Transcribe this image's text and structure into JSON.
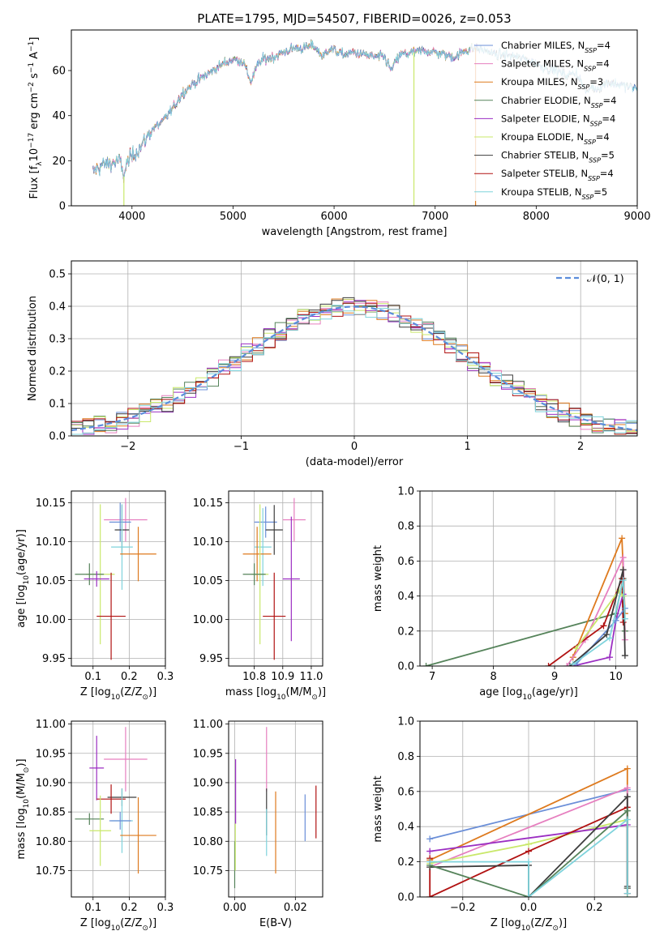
{
  "figure": {
    "title": "PLATE=1795, MJD=54507, FIBERID=0026, z=0.053"
  },
  "colors": {
    "cm": "#6b8fd8",
    "sm": "#e67fbf",
    "km": "#de7a1e",
    "ce": "#55835a",
    "se": "#9b2ec2",
    "ke": "#c9e86a",
    "cs": "#3d3d3d",
    "ss": "#b11212",
    "ks": "#7fd3dc"
  },
  "models": [
    {
      "key": "cm",
      "label": "Chabrier MILES, N",
      "sub": "SSP",
      "n": "=4"
    },
    {
      "key": "sm",
      "label": "Salpeter MILES, N",
      "sub": "SSP",
      "n": "=4"
    },
    {
      "key": "km",
      "label": "Kroupa MILES, N",
      "sub": "SSP",
      "n": "=3"
    },
    {
      "key": "ce",
      "label": "Chabrier ELODIE, N",
      "sub": "SSP",
      "n": "=4"
    },
    {
      "key": "se",
      "label": "Salpeter ELODIE, N",
      "sub": "SSP",
      "n": "=4"
    },
    {
      "key": "ke",
      "label": "Kroupa ELODIE, N",
      "sub": "SSP",
      "n": "=4"
    },
    {
      "key": "cs",
      "label": "Chabrier STELIB, N",
      "sub": "SSP",
      "n": "=5"
    },
    {
      "key": "ss",
      "label": "Salpeter STELIB, N",
      "sub": "SSP",
      "n": "=4"
    },
    {
      "key": "ks",
      "label": "Kroupa STELIB, N",
      "sub": "SSP",
      "n": "=5"
    }
  ],
  "chart_data": [
    {
      "id": "spectrum",
      "type": "line",
      "xlabel": "wavelength [Angstrom, rest frame]",
      "ylabel": "Flux [f",
      "ylabel_parts": [
        "λ",
        "10",
        "−17",
        " erg cm",
        "−2",
        " s",
        "−1",
        " A",
        "−1",
        "]"
      ],
      "xlim": [
        3400,
        9000
      ],
      "ylim": [
        0,
        78
      ],
      "xticks": [
        "4000",
        "5000",
        "6000",
        "7000",
        "8000",
        "9000"
      ],
      "yticks": [
        "0",
        "20",
        "40",
        "60"
      ],
      "continuum": [
        [
          3610,
          15
        ],
        [
          3700,
          18
        ],
        [
          3800,
          19
        ],
        [
          3880,
          20
        ],
        [
          3920,
          13
        ],
        [
          3950,
          19
        ],
        [
          4000,
          22
        ],
        [
          4100,
          27
        ],
        [
          4200,
          34
        ],
        [
          4300,
          37
        ],
        [
          4400,
          43
        ],
        [
          4500,
          50
        ],
        [
          4600,
          54
        ],
        [
          4700,
          57
        ],
        [
          4800,
          60
        ],
        [
          4900,
          63
        ],
        [
          5000,
          65
        ],
        [
          5100,
          64
        ],
        [
          5175,
          55
        ],
        [
          5250,
          63
        ],
        [
          5300,
          65
        ],
        [
          5400,
          66
        ],
        [
          5500,
          68
        ],
        [
          5600,
          70
        ],
        [
          5700,
          70
        ],
        [
          5800,
          71
        ],
        [
          5890,
          66
        ],
        [
          5950,
          70
        ],
        [
          6000,
          69
        ],
        [
          6100,
          67
        ],
        [
          6200,
          68
        ],
        [
          6300,
          67
        ],
        [
          6400,
          66
        ],
        [
          6500,
          66
        ],
        [
          6563,
          60
        ],
        [
          6650,
          67
        ],
        [
          6800,
          68
        ],
        [
          6900,
          69
        ],
        [
          7000,
          68
        ],
        [
          7100,
          67
        ],
        [
          7200,
          66
        ],
        [
          7300,
          69
        ],
        [
          7400,
          70
        ],
        [
          7500,
          69
        ],
        [
          7600,
          67
        ],
        [
          7700,
          67
        ],
        [
          7800,
          66
        ],
        [
          7900,
          65
        ],
        [
          8000,
          63
        ],
        [
          8100,
          61
        ],
        [
          8200,
          60
        ],
        [
          8300,
          58
        ],
        [
          8400,
          59
        ],
        [
          8500,
          50
        ],
        [
          8542,
          53
        ],
        [
          8600,
          52
        ],
        [
          8662,
          53
        ],
        [
          8700,
          55
        ],
        [
          8800,
          54
        ],
        [
          8900,
          53
        ],
        [
          9000,
          52
        ]
      ],
      "dips": [
        [
          3920,
          0,
          "ke"
        ],
        [
          6790,
          0,
          "ke"
        ],
        [
          7400,
          0,
          "km"
        ]
      ]
    },
    {
      "id": "residuals",
      "type": "histogram",
      "xlabel": "(data-model)/error",
      "ylabel": "Normed distribution",
      "xlim": [
        -2.5,
        2.5
      ],
      "ylim": [
        0,
        0.54
      ],
      "xticks": [
        -2,
        -1,
        0,
        1,
        2
      ],
      "xtick_labels": [
        "−2",
        "−1",
        "0",
        "1",
        "2"
      ],
      "yticks": [
        "0.0",
        "0.1",
        "0.2",
        "0.3",
        "0.4",
        "0.5"
      ],
      "bin_width": 0.1,
      "legend": "𝒩(0, 1)"
    },
    {
      "id": "age_vs_Z",
      "type": "scatter",
      "xlabel": "Z [log",
      "xlabel_parts": [
        "10",
        "(Z/Z",
        "⊙",
        ")]"
      ],
      "ylabel": "age  [log",
      "ylabel_parts": [
        "10",
        "(age/yr)]"
      ],
      "xlim": [
        0.04,
        0.3
      ],
      "ylim": [
        9.94,
        10.165
      ],
      "xticks": [
        "0.1",
        "0.2",
        "0.3"
      ],
      "yticks": [
        "9.95",
        "10.00",
        "10.05",
        "10.10",
        "10.15"
      ],
      "points": [
        {
          "key": "sm",
          "x": 0.19,
          "y": 10.128,
          "xe": 0.06,
          "ye": 0.028
        },
        {
          "key": "cm",
          "x": 0.175,
          "y": 10.125,
          "xe": 0.03,
          "ye": 0.025
        },
        {
          "key": "cs",
          "x": 0.18,
          "y": 10.115,
          "xe": 0.02,
          "ye": 0.032
        },
        {
          "key": "ks",
          "x": 0.18,
          "y": 10.093,
          "xe": 0.03,
          "ye": 0.055
        },
        {
          "key": "km",
          "x": 0.225,
          "y": 10.084,
          "xe": 0.05,
          "ye": 0.035
        },
        {
          "key": "ke",
          "x": 0.12,
          "y": 10.058,
          "xe": 0.04,
          "ye": 0.09
        },
        {
          "key": "ce",
          "x": 0.09,
          "y": 10.058,
          "xe": 0.04,
          "ye": 0.014
        },
        {
          "key": "se",
          "x": 0.11,
          "y": 10.052,
          "xe": 0.035,
          "ye": 0.01
        },
        {
          "key": "ss",
          "x": 0.15,
          "y": 10.004,
          "xe": 0.04,
          "ye": 0.056
        }
      ]
    },
    {
      "id": "age_vs_mass",
      "type": "scatter",
      "xlabel": "mass [log",
      "xlabel_parts": [
        "10",
        "(M/M",
        "⊙",
        ")]"
      ],
      "xlim": [
        10.71,
        11.04
      ],
      "ylim": [
        9.94,
        10.165
      ],
      "xticks": [
        "10.8",
        "10.9",
        "11.0"
      ],
      "yticks": [
        "9.95",
        "10.00",
        "10.05",
        "10.10",
        "10.15"
      ],
      "points": [
        {
          "key": "sm",
          "x": 10.94,
          "y": 10.128,
          "xe": 0.04,
          "ye": 0.028
        },
        {
          "key": "cm",
          "x": 10.84,
          "y": 10.125,
          "xe": 0.04,
          "ye": 0.02
        },
        {
          "key": "cs",
          "x": 10.87,
          "y": 10.115,
          "xe": 0.03,
          "ye": 0.032
        },
        {
          "key": "ks",
          "x": 10.83,
          "y": 10.093,
          "xe": 0.03,
          "ye": 0.05
        },
        {
          "key": "km",
          "x": 10.81,
          "y": 10.084,
          "xe": 0.05,
          "ye": 0.035
        },
        {
          "key": "ke",
          "x": 10.82,
          "y": 10.058,
          "xe": 0.03,
          "ye": 0.09
        },
        {
          "key": "ce",
          "x": 10.8,
          "y": 10.058,
          "xe": 0.04,
          "ye": 0.014
        },
        {
          "key": "se",
          "x": 10.93,
          "y": 10.052,
          "xe": 0.03,
          "ye": 0.08
        },
        {
          "key": "ss",
          "x": 10.87,
          "y": 10.004,
          "xe": 0.04,
          "ye": 0.056
        }
      ]
    },
    {
      "id": "weight_vs_age",
      "type": "line",
      "xlabel": "age  [log",
      "xlabel_parts": [
        "10",
        "(age/yr)]"
      ],
      "ylabel": "mass weight",
      "xlim": [
        6.8,
        10.35
      ],
      "ylim": [
        0,
        1
      ],
      "xticks": [
        "7",
        "8",
        "9",
        "10"
      ],
      "yticks": [
        "0.0",
        "0.2",
        "0.4",
        "0.6",
        "0.8",
        "1.0"
      ],
      "series": [
        {
          "key": "ce",
          "points": [
            [
              6.9,
              0
            ],
            [
              10.0,
              0.3
            ],
            [
              10.12,
              0.5
            ],
            [
              10.15,
              0.2
            ]
          ]
        },
        {
          "key": "km",
          "points": [
            [
              9.3,
              0.05
            ],
            [
              10.1,
              0.73
            ],
            [
              10.15,
              0.3
            ]
          ]
        },
        {
          "key": "sm",
          "points": [
            [
              9.2,
              0.0
            ],
            [
              9.5,
              0.15
            ],
            [
              10.12,
              0.62
            ],
            [
              10.15,
              0.15
            ]
          ]
        },
        {
          "key": "ss",
          "points": [
            [
              8.9,
              0.0
            ],
            [
              9.8,
              0.23
            ],
            [
              10.1,
              0.5
            ],
            [
              10.12,
              0.25
            ]
          ]
        },
        {
          "key": "se",
          "points": [
            [
              9.3,
              0.0
            ],
            [
              9.9,
              0.05
            ],
            [
              10.0,
              0.26
            ],
            [
              10.12,
              0.41
            ]
          ]
        },
        {
          "key": "ke",
          "points": [
            [
              9.35,
              0.1
            ],
            [
              10.05,
              0.43
            ],
            [
              10.12,
              0.4
            ]
          ]
        },
        {
          "key": "cm",
          "points": [
            [
              9.35,
              0.01
            ],
            [
              10.0,
              0.26
            ],
            [
              10.15,
              0.33
            ]
          ]
        },
        {
          "key": "cs",
          "points": [
            [
              9.25,
              0.0
            ],
            [
              9.85,
              0.18
            ],
            [
              10.12,
              0.55
            ],
            [
              10.15,
              0.06
            ]
          ]
        },
        {
          "key": "ks",
          "points": [
            [
              9.3,
              0.01
            ],
            [
              9.9,
              0.16
            ],
            [
              10.12,
              0.49
            ],
            [
              10.15,
              0.27
            ]
          ]
        }
      ]
    },
    {
      "id": "mass_vs_Z",
      "type": "scatter",
      "xlabel": "Z [log",
      "xlabel_parts": [
        "10",
        "(Z/Z",
        "⊙",
        ")]"
      ],
      "ylabel": "mass [log",
      "ylabel_parts": [
        "10",
        "(M/M",
        "⊙",
        ")]"
      ],
      "xlim": [
        0.04,
        0.3
      ],
      "ylim": [
        10.705,
        11.005
      ],
      "xticks": [
        "0.1",
        "0.2",
        "0.3"
      ],
      "yticks": [
        "10.75",
        "10.80",
        "10.85",
        "10.90",
        "10.95",
        "11.00"
      ],
      "points": [
        {
          "key": "sm",
          "x": 0.19,
          "y": 10.94,
          "xe": 0.06,
          "ye": 0.055
        },
        {
          "key": "se",
          "x": 0.11,
          "y": 10.925,
          "xe": 0.02,
          "ye": 0.055
        },
        {
          "key": "cs",
          "x": 0.18,
          "y": 10.875,
          "xe": 0.04,
          "ye": 0.015
        },
        {
          "key": "ss",
          "x": 0.15,
          "y": 10.872,
          "xe": 0.04,
          "ye": 0.025
        },
        {
          "key": "ce",
          "x": 0.09,
          "y": 10.838,
          "xe": 0.04,
          "ye": 0.01
        },
        {
          "key": "ks",
          "x": 0.18,
          "y": 10.835,
          "xe": 0.03,
          "ye": 0.055
        },
        {
          "key": "cm",
          "x": 0.175,
          "y": 10.835,
          "xe": 0.03,
          "ye": 0.015
        },
        {
          "key": "ke",
          "x": 0.12,
          "y": 10.818,
          "xe": 0.03,
          "ye": 0.06
        },
        {
          "key": "km",
          "x": 0.225,
          "y": 10.81,
          "xe": 0.05,
          "ye": 0.065
        }
      ]
    },
    {
      "id": "mass_vs_EBV",
      "type": "scatter",
      "xlabel": "E(B-V)",
      "xlim": [
        -0.002,
        0.029
      ],
      "ylim": [
        10.705,
        11.005
      ],
      "xticks": [
        "0.00",
        "0.02"
      ],
      "yticks": [
        "10.75",
        "10.80",
        "10.85",
        "10.90",
        "10.95",
        "11.00"
      ],
      "points": [
        {
          "key": "sm",
          "x": 0.0105,
          "y": 10.94,
          "xe": 0,
          "ye": 0.055
        },
        {
          "key": "se",
          "x": 0.0003,
          "y": 10.885,
          "xe": 0,
          "ye": 0.055
        },
        {
          "key": "cs",
          "x": 0.0105,
          "y": 10.85,
          "xe": 0,
          "ye": 0.04
        },
        {
          "key": "ce",
          "x": 0.0,
          "y": 10.76,
          "xe": 0,
          "ye": 0.04
        },
        {
          "key": "ke",
          "x": 0.0002,
          "y": 10.79,
          "xe": 0,
          "ye": 0.04
        },
        {
          "key": "ks",
          "x": 0.0105,
          "y": 10.815,
          "xe": 0,
          "ye": 0.04
        },
        {
          "key": "km",
          "x": 0.0135,
          "y": 10.815,
          "xe": 0,
          "ye": 0.07
        },
        {
          "key": "cm",
          "x": 0.0232,
          "y": 10.84,
          "xe": 0,
          "ye": 0.04
        },
        {
          "key": "ss",
          "x": 0.0268,
          "y": 10.85,
          "xe": 0,
          "ye": 0.045
        }
      ]
    },
    {
      "id": "weight_vs_Z",
      "type": "line",
      "xlabel": "Z [log",
      "xlabel_parts": [
        "10",
        "(Z/Z",
        "⊙",
        ")]"
      ],
      "ylabel": "mass weight",
      "xlim": [
        -0.33,
        0.33
      ],
      "ylim": [
        0,
        1
      ],
      "xticks": [
        -0.2,
        0.0,
        0.2
      ],
      "xtick_labels": [
        "−0.2",
        "0.0",
        "0.2"
      ],
      "yticks": [
        "0.0",
        "0.2",
        "0.4",
        "0.6",
        "0.8",
        "1.0"
      ],
      "series": [
        {
          "key": "cm",
          "points": [
            [
              -0.3,
              0.33
            ],
            [
              0.3,
              0.61
            ],
            [
              0.3,
              0.02
            ]
          ]
        },
        {
          "key": "km",
          "points": [
            [
              -0.3,
              0.21
            ],
            [
              0.3,
              0.73
            ],
            [
              0.3,
              0.05
            ]
          ]
        },
        {
          "key": "sm",
          "points": [
            [
              -0.3,
              0.17
            ],
            [
              0.3,
              0.62
            ],
            [
              0.3,
              0.05
            ]
          ]
        },
        {
          "key": "ke",
          "points": [
            [
              -0.3,
              0.19
            ],
            [
              0.0,
              0.3
            ],
            [
              0.3,
              0.44
            ],
            [
              0.3,
              0.0
            ]
          ]
        },
        {
          "key": "se",
          "points": [
            [
              -0.3,
              0.26
            ],
            [
              0.3,
              0.41
            ],
            [
              0.3,
              0.05
            ]
          ]
        },
        {
          "key": "ss",
          "points": [
            [
              -0.3,
              0.22
            ],
            [
              -0.3,
              0.0
            ],
            [
              0.0,
              0.26
            ],
            [
              0.3,
              0.51
            ],
            [
              0.3,
              0.02
            ]
          ]
        },
        {
          "key": "cs",
          "points": [
            [
              -0.3,
              0.17
            ],
            [
              0.0,
              0.18
            ],
            [
              0.0,
              0.0
            ],
            [
              0.3,
              0.57
            ],
            [
              0.3,
              0.06
            ]
          ]
        },
        {
          "key": "ce",
          "points": [
            [
              -0.3,
              0.18
            ],
            [
              0.0,
              0.0
            ],
            [
              0.3,
              0.49
            ],
            [
              0.3,
              0.05
            ]
          ]
        },
        {
          "key": "ks",
          "points": [
            [
              -0.3,
              0.2
            ],
            [
              0.0,
              0.2
            ],
            [
              0.0,
              0.0
            ],
            [
              0.3,
              0.44
            ],
            [
              0.3,
              0.02
            ]
          ]
        }
      ]
    }
  ]
}
